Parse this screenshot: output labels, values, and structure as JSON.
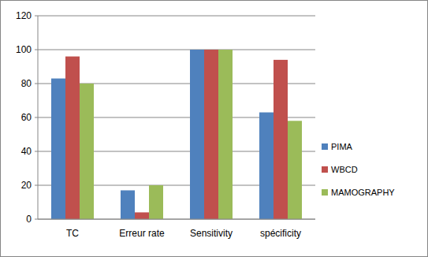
{
  "chart_data": {
    "type": "bar",
    "categories": [
      "TC",
      "Erreur rate",
      "Sensitivity",
      "spécificity"
    ],
    "series": [
      {
        "name": "PIMA",
        "color": "#4f81bd",
        "values": [
          83,
          17,
          100,
          63
        ]
      },
      {
        "name": "WBCD",
        "color": "#c0504d",
        "values": [
          96,
          4,
          100,
          94
        ]
      },
      {
        "name": "MAMOGRAPHY",
        "color": "#9bbb59",
        "values": [
          80,
          20,
          100,
          58
        ]
      }
    ],
    "ylim": [
      0,
      120
    ],
    "yticks": [
      0,
      20,
      40,
      60,
      80,
      100,
      120
    ],
    "grid": true,
    "legend": "right"
  }
}
